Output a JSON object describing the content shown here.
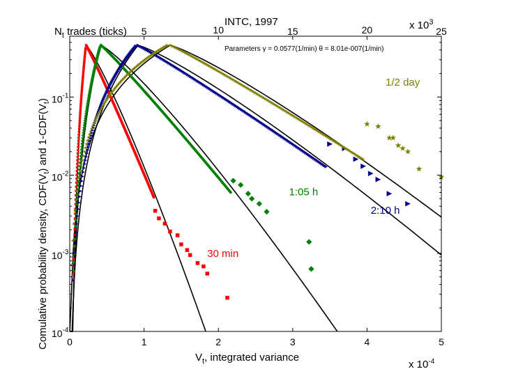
{
  "chart_data": {
    "type": "scatter",
    "title": "INTC, 1997",
    "xlabel": "V",
    "xlabel_sub": "t",
    "xlabel_rest": ", integrated variance",
    "x_multiplier": "x 10",
    "x_multiplier_exp": "-4",
    "ylabel": "Comulative probability density, CDF(V",
    "ylabel_sub": "t",
    "ylabel_mid": ") and 1-CDF(V",
    "ylabel_end": ")",
    "top_axis_label": "N",
    "top_axis_label_sub": "t",
    "top_axis_label_rest": " trades (ticks)",
    "top_multiplier": "x 10",
    "top_multiplier_exp": "3",
    "parameters_text": "Parameters γ = 0.0577(1/min) θ = 8.01e-007(1/min)",
    "xlim": [
      0,
      5
    ],
    "ylim": [
      0.0001,
      0.6
    ],
    "yscale": "log",
    "x_ticks": [
      0,
      1,
      2,
      3,
      4,
      5
    ],
    "x_tick_labels": [
      "0",
      "1",
      "2",
      "3",
      "4",
      "5"
    ],
    "y_ticks": [
      0.0001,
      0.001,
      0.01,
      0.1
    ],
    "y_tick_labels": [
      {
        "base": "10",
        "exp": "-4"
      },
      {
        "base": "10",
        "exp": "-3"
      },
      {
        "base": "10",
        "exp": "-2"
      },
      {
        "base": "10",
        "exp": "-1"
      }
    ],
    "top_ticks": [
      5,
      10,
      15,
      20,
      25
    ],
    "top_tick_labels": [
      "5",
      "10",
      "15",
      "20",
      "25"
    ],
    "top_axis_max": 25,
    "series": [
      {
        "name": "30 min",
        "color": "#ff0000",
        "marker": "square",
        "peak": 0.22,
        "w": 0.11,
        "k": 5.0,
        "label_x": 1.85,
        "label_y": 0.0009
      },
      {
        "name": "1:05 h",
        "color": "#008000",
        "marker": "diamond",
        "peak": 0.42,
        "w": 0.19,
        "k": 3.5,
        "label_x": 2.95,
        "label_y": 0.0055
      },
      {
        "name": "2:10 h",
        "color": "#00008b",
        "marker": "triangle-right",
        "peak": 0.92,
        "w": 0.34,
        "k": 2.55,
        "label_x": 4.05,
        "label_y": 0.0032
      },
      {
        "name": "1/2 day",
        "color": "#808000",
        "marker": "star",
        "peak": 1.35,
        "w": 0.5,
        "k": 1.8,
        "label_x": 4.25,
        "label_y": 0.14
      }
    ],
    "tail_points": [
      {
        "series": "30 min",
        "x": [
          1.15,
          1.2,
          1.28,
          1.35,
          1.45,
          1.5,
          1.58,
          1.62,
          1.72,
          1.8,
          1.85,
          2.12
        ],
        "y": [
          0.0035,
          0.0028,
          0.0024,
          0.0019,
          0.0017,
          0.0013,
          0.0011,
          0.00095,
          0.00075,
          0.00068,
          0.00055,
          0.00027
        ]
      },
      {
        "series": "1:05 h",
        "x": [
          2.2,
          2.3,
          2.4,
          2.45,
          2.55,
          2.65,
          3.22,
          3.25
        ],
        "y": [
          0.0085,
          0.0075,
          0.0058,
          0.005,
          0.0043,
          0.0034,
          0.0014,
          0.00063
        ]
      },
      {
        "series": "2:10 h",
        "x": [
          3.5,
          3.7,
          3.85,
          3.95,
          4.05,
          4.15,
          4.3,
          4.55
        ],
        "y": [
          0.025,
          0.022,
          0.016,
          0.013,
          0.0105,
          0.0088,
          0.0058,
          0.0043
        ]
      },
      {
        "series": "1/2 day",
        "x": [
          4.0,
          4.15,
          4.3,
          4.35,
          4.42,
          4.48,
          4.55,
          4.7,
          5.0
        ],
        "y": [
          0.045,
          0.042,
          0.03,
          0.03,
          0.024,
          0.022,
          0.02,
          0.012,
          0.0095
        ]
      }
    ]
  }
}
